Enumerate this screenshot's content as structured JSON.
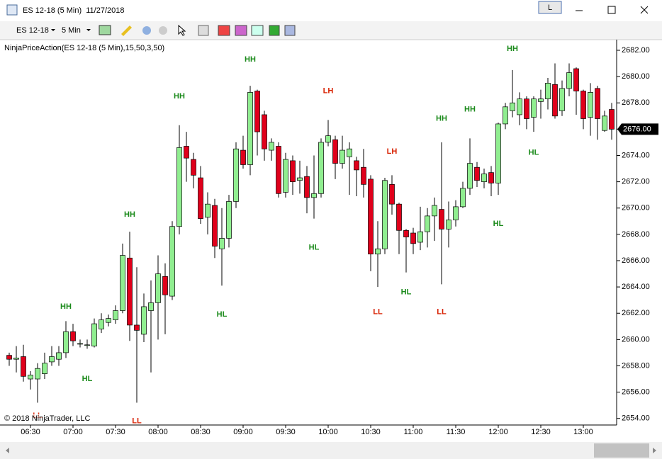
{
  "window": {
    "title": "ES 12-18 (5 Min)  11/27/2018",
    "button": "L"
  },
  "toolbar": {
    "instrument": "ES 12-18",
    "interval": "5 Min"
  },
  "chart_data": {
    "type": "candlestick",
    "indicator_label": "NinjaPriceAction(ES 12-18 (5 Min),15,50,3,50)",
    "copyright": "© 2018 NinjaTrader, LLC",
    "up_color": "#90ee90",
    "down_color": "#e0001b",
    "categories": [
      null,
      null,
      null,
      "06:30",
      null,
      null,
      null,
      null,
      null,
      "07:00",
      null,
      null,
      null,
      null,
      null,
      "07:30",
      null,
      null,
      null,
      null,
      null,
      "08:00",
      null,
      null,
      null,
      null,
      null,
      "08:30",
      null,
      null,
      null,
      null,
      null,
      "09:00",
      null,
      null,
      null,
      null,
      null,
      "09:30",
      null,
      null,
      null,
      null,
      null,
      "10:00",
      null,
      null,
      null,
      null,
      null,
      "10:30",
      null,
      null,
      null,
      null,
      null,
      "11:00",
      null,
      null,
      null,
      null,
      null,
      "11:30",
      null,
      null,
      null,
      null,
      null,
      "12:00",
      null,
      null,
      null,
      null,
      null,
      "12:30",
      null,
      null,
      null,
      null,
      null,
      "13:00",
      null,
      null,
      null,
      null
    ],
    "open": [
      2658.8,
      2658.5,
      2658.7,
      2657.0,
      2657.0,
      2657.4,
      2658.3,
      2658.5,
      2659.0,
      2660.6,
      2659.7,
      2659.6,
      2659.5,
      2660.8,
      2661.3,
      2661.5,
      2662.2,
      2666.2,
      2661.1,
      2660.4,
      2662.2,
      2662.8,
      2664.8,
      2663.3,
      2668.6,
      2674.7,
      2673.7,
      2672.3,
      2669.3,
      2670.2,
      2666.9,
      2667.7,
      2670.5,
      2674.4,
      2673.3,
      2678.9,
      2677.1,
      2674.4,
      2674.7,
      2671.2,
      2673.6,
      2672.1,
      2672.4,
      2670.8,
      2671.1,
      2675.0,
      2675.2,
      2673.4,
      2673.9,
      2673.6,
      2673.1,
      2672.2,
      2666.5,
      2666.9,
      2671.8,
      2670.3,
      2668.3,
      2668.1,
      2667.4,
      2668.2,
      2669.4,
      2669.9,
      2668.4,
      2669.1,
      2670.1,
      2671.5,
      2673.1,
      2672.0,
      2672.7,
      2671.9,
      2676.4,
      2677.4,
      2677.1,
      2678.3,
      2676.9,
      2678.1,
      2678.3,
      2679.4,
      2677.4,
      2679.1,
      2680.6,
      2678.9,
      2676.9,
      2679.1,
      2675.9,
      2677.5
    ],
    "high": [
      2659.0,
      2659.5,
      2659.6,
      2657.6,
      2658.2,
      2659.0,
      2659.5,
      2659.5,
      2661.4,
      2661.2,
      2660.0,
      2660.0,
      2661.6,
      2662.0,
      2661.9,
      2662.6,
      2667.3,
      2668.2,
      2665.5,
      2663.5,
      2664.5,
      2666.4,
      2665.8,
      2669.0,
      2676.3,
      2675.8,
      2674.2,
      2673.2,
      2671.2,
      2670.7,
      2670.0,
      2671.0,
      2675.0,
      2675.5,
      2679.3,
      2679.0,
      2677.4,
      2675.3,
      2675.0,
      2674.2,
      2674.0,
      2673.6,
      2673.2,
      2674.0,
      2675.3,
      2676.7,
      2675.5,
      2675.5,
      2675.0,
      2673.9,
      2674.5,
      2672.5,
      2669.0,
      2672.3,
      2672.5,
      2670.4,
      2668.4,
      2668.5,
      2670.1,
      2670.0,
      2670.8,
      2675.0,
      2670.5,
      2670.6,
      2672.0,
      2675.3,
      2673.5,
      2673.0,
      2673.2,
      2676.5,
      2678.0,
      2680.5,
      2678.8,
      2678.5,
      2678.5,
      2679.0,
      2679.9,
      2681.0,
      2679.7,
      2681.0,
      2680.7,
      2679.0,
      2679.5,
      2679.3,
      2677.4,
      2678.0
    ],
    "low": [
      2658.0,
      2657.5,
      2656.8,
      2656.2,
      2655.2,
      2657.0,
      2658.0,
      2658.0,
      2658.6,
      2659.5,
      2659.4,
      2659.3,
      2659.4,
      2660.5,
      2661.0,
      2661.2,
      2662.0,
      2659.9,
      2655.2,
      2659.8,
      2657.5,
      2660.0,
      2660.4,
      2663.0,
      2668.0,
      2672.0,
      2671.5,
      2668.8,
      2668.0,
      2666.2,
      2664.1,
      2667.0,
      2670.0,
      2673.0,
      2672.5,
      2674.0,
      2673.6,
      2673.6,
      2670.8,
      2670.8,
      2671.0,
      2671.1,
      2669.6,
      2669.2,
      2670.8,
      2674.7,
      2672.2,
      2673.0,
      2671.0,
      2670.9,
      2670.8,
      2665.2,
      2664.0,
      2666.5,
      2669.5,
      2666.5,
      2665.1,
      2666.5,
      2666.8,
      2667.0,
      2667.5,
      2664.2,
      2667.0,
      2668.6,
      2670.0,
      2671.0,
      2671.6,
      2671.5,
      2670.9,
      2671.0,
      2676.0,
      2676.9,
      2676.3,
      2676.0,
      2675.8,
      2676.8,
      2677.5,
      2676.8,
      2677.0,
      2678.5,
      2677.1,
      2676.0,
      2675.5,
      2675.2,
      2675.8,
      2675.2
    ],
    "close": [
      2658.5,
      2658.6,
      2657.2,
      2657.3,
      2657.8,
      2658.2,
      2658.7,
      2659.0,
      2660.6,
      2659.9,
      2659.7,
      2659.6,
      2661.2,
      2661.5,
      2661.6,
      2662.2,
      2666.4,
      2661.1,
      2660.7,
      2662.5,
      2662.8,
      2665.0,
      2663.4,
      2668.6,
      2674.6,
      2673.8,
      2672.5,
      2669.2,
      2670.3,
      2667.1,
      2667.7,
      2670.5,
      2674.5,
      2673.3,
      2678.8,
      2675.8,
      2674.5,
      2675.0,
      2671.1,
      2673.7,
      2672.0,
      2672.3,
      2670.8,
      2671.1,
      2675.0,
      2675.5,
      2673.4,
      2674.4,
      2674.5,
      2672.9,
      2671.8,
      2666.5,
      2666.9,
      2672.1,
      2670.3,
      2668.3,
      2667.8,
      2667.3,
      2668.2,
      2669.4,
      2670.2,
      2668.4,
      2669.1,
      2670.1,
      2671.5,
      2673.4,
      2672.1,
      2672.6,
      2671.9,
      2676.4,
      2677.7,
      2678.0,
      2678.3,
      2676.8,
      2678.3,
      2678.3,
      2679.5,
      2677.0,
      2679.1,
      2680.3,
      2678.9,
      2676.8,
      2678.8,
      2676.8,
      2677.0,
      2676.0
    ],
    "annotations": [
      {
        "text": "LL",
        "x": 4,
        "y": 2654.2,
        "color": "#d82000"
      },
      {
        "text": "HL",
        "x": 11,
        "y": 2657.0,
        "color": "#1a8a1a"
      },
      {
        "text": "HH",
        "x": 8,
        "y": 2662.5,
        "color": "#1a8a1a"
      },
      {
        "text": "HH",
        "x": 17,
        "y": 2669.5,
        "color": "#1a8a1a"
      },
      {
        "text": "LL",
        "x": 18,
        "y": 2653.8,
        "color": "#d82000"
      },
      {
        "text": "HH",
        "x": 24,
        "y": 2678.5,
        "color": "#1a8a1a"
      },
      {
        "text": "HL",
        "x": 30,
        "y": 2661.9,
        "color": "#1a8a1a"
      },
      {
        "text": "HH",
        "x": 34,
        "y": 2681.3,
        "color": "#1a8a1a"
      },
      {
        "text": "HL",
        "x": 43,
        "y": 2667.0,
        "color": "#1a8a1a"
      },
      {
        "text": "LH",
        "x": 45,
        "y": 2678.9,
        "color": "#d82000"
      },
      {
        "text": "LH",
        "x": 54,
        "y": 2674.3,
        "color": "#d82000"
      },
      {
        "text": "LL",
        "x": 52,
        "y": 2662.1,
        "color": "#d82000"
      },
      {
        "text": "HL",
        "x": 56,
        "y": 2663.6,
        "color": "#1a8a1a"
      },
      {
        "text": "HH",
        "x": 61,
        "y": 2676.8,
        "color": "#1a8a1a"
      },
      {
        "text": "LL",
        "x": 61,
        "y": 2662.1,
        "color": "#d82000"
      },
      {
        "text": "HH",
        "x": 65,
        "y": 2677.5,
        "color": "#1a8a1a"
      },
      {
        "text": "HL",
        "x": 69,
        "y": 2668.8,
        "color": "#1a8a1a"
      },
      {
        "text": "HH",
        "x": 71,
        "y": 2682.1,
        "color": "#1a8a1a"
      },
      {
        "text": "HL",
        "x": 74,
        "y": 2674.2,
        "color": "#1a8a1a"
      }
    ],
    "ylim": [
      2653.5,
      2682.7
    ],
    "yticks": [
      {
        "value": 2654,
        "label": "2654.00"
      },
      {
        "value": 2656,
        "label": "2656.00"
      },
      {
        "value": 2658,
        "label": "2658.00"
      },
      {
        "value": 2660,
        "label": "2660.00"
      },
      {
        "value": 2662,
        "label": "2662.00"
      },
      {
        "value": 2664,
        "label": "2664.00"
      },
      {
        "value": 2666,
        "label": "2666.00"
      },
      {
        "value": 2668,
        "label": "2668.00"
      },
      {
        "value": 2670,
        "label": "2670.00"
      },
      {
        "value": 2672,
        "label": "2672.00"
      },
      {
        "value": 2674,
        "label": "2674.00"
      },
      {
        "value": 2676,
        "label": "2676.00"
      },
      {
        "value": 2678,
        "label": "2678.00"
      },
      {
        "value": 2680,
        "label": "2680.00"
      },
      {
        "value": 2682,
        "label": "2682.00"
      }
    ],
    "last_price": {
      "value": 2676,
      "label": "2676.00"
    }
  }
}
